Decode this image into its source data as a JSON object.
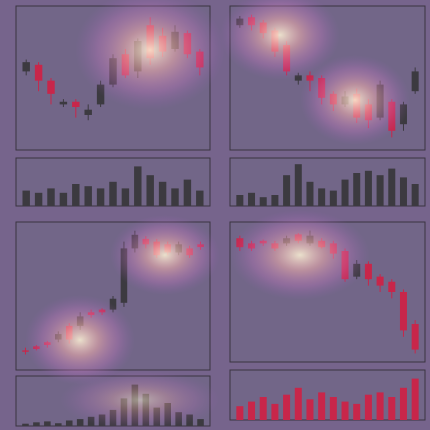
{
  "chart_data": [
    {
      "type": "candlestick",
      "up_color": "#3c3a40",
      "down_color": "#c8264a",
      "volume_color": "#3c3a40",
      "ylim": [
        0,
        100
      ],
      "volume_ylim": [
        0,
        100
      ],
      "open": [
        55,
        60,
        48,
        30,
        32,
        22,
        30,
        45,
        68,
        55,
        90,
        82,
        72,
        84,
        70
      ],
      "high": [
        64,
        62,
        50,
        34,
        34,
        30,
        48,
        68,
        72,
        80,
        96,
        88,
        90,
        86,
        72
      ],
      "low": [
        52,
        40,
        30,
        28,
        20,
        18,
        28,
        43,
        50,
        50,
        60,
        66,
        70,
        65,
        52
      ],
      "close": [
        62,
        48,
        38,
        32,
        28,
        26,
        45,
        65,
        52,
        78,
        65,
        70,
        85,
        68,
        58
      ],
      "volume": [
        35,
        30,
        40,
        30,
        50,
        45,
        40,
        55,
        40,
        90,
        70,
        55,
        40,
        60,
        35
      ]
    },
    {
      "type": "candlestick",
      "up_color": "#3c3a40",
      "down_color": "#c8264a",
      "volume_color": "#3c3a40",
      "ylim": [
        0,
        100
      ],
      "volume_ylim": [
        0,
        100
      ],
      "open": [
        90,
        96,
        92,
        86,
        75,
        48,
        52,
        50,
        38,
        30,
        38,
        30,
        20,
        32,
        15,
        40
      ],
      "high": [
        97,
        98,
        94,
        88,
        78,
        54,
        55,
        52,
        40,
        40,
        42,
        34,
        48,
        34,
        32,
        58
      ],
      "low": [
        88,
        86,
        80,
        66,
        52,
        45,
        40,
        30,
        25,
        28,
        16,
        12,
        18,
        5,
        10,
        38
      ],
      "close": [
        95,
        90,
        84,
        70,
        55,
        52,
        48,
        35,
        30,
        36,
        20,
        18,
        45,
        10,
        30,
        55
      ],
      "volume": [
        25,
        30,
        20,
        25,
        70,
        95,
        55,
        40,
        35,
        60,
        75,
        80,
        70,
        85,
        65,
        50
      ]
    },
    {
      "type": "candlestick",
      "up_color": "#3c3a40",
      "down_color": "#c8264a",
      "volume_color": "#3c3a40",
      "ylim": [
        0,
        100
      ],
      "volume_ylim": [
        0,
        100
      ],
      "open": [
        10,
        13,
        16,
        18,
        28,
        28,
        38,
        40,
        40,
        45,
        85,
        92,
        90,
        88,
        82,
        85,
        88
      ],
      "high": [
        12,
        14,
        17,
        24,
        30,
        38,
        40,
        41,
        50,
        90,
        98,
        94,
        92,
        90,
        90,
        87,
        90
      ],
      "low": [
        7,
        10,
        12,
        16,
        15,
        25,
        34,
        36,
        38,
        42,
        82,
        85,
        78,
        80,
        80,
        78,
        84
      ],
      "close": [
        9,
        11,
        14,
        22,
        18,
        35,
        36,
        38,
        48,
        85,
        95,
        88,
        80,
        82,
        88,
        80,
        86
      ],
      "volume": [
        5,
        8,
        10,
        6,
        12,
        15,
        20,
        25,
        35,
        60,
        90,
        70,
        40,
        50,
        30,
        25,
        15
      ]
    },
    {
      "type": "candlestick",
      "up_color": "#3c3a40",
      "down_color": "#c8264a",
      "volume_color": "#c8264a",
      "ylim": [
        0,
        100
      ],
      "volume_ylim": [
        0,
        100
      ],
      "open": [
        92,
        88,
        90,
        88,
        88,
        95,
        88,
        90,
        88,
        82,
        62,
        72,
        62,
        58,
        50,
        25
      ],
      "high": [
        94,
        90,
        91,
        90,
        94,
        96,
        98,
        92,
        90,
        84,
        75,
        74,
        64,
        60,
        52,
        28
      ],
      "low": [
        82,
        82,
        86,
        82,
        86,
        88,
        86,
        84,
        76,
        58,
        60,
        55,
        50,
        45,
        15,
        2
      ],
      "close": [
        85,
        84,
        88,
        84,
        92,
        90,
        94,
        85,
        80,
        60,
        72,
        60,
        55,
        50,
        20,
        5
      ],
      "volume": [
        30,
        40,
        50,
        35,
        55,
        70,
        45,
        60,
        50,
        40,
        35,
        55,
        60,
        50,
        70,
        90
      ]
    }
  ]
}
